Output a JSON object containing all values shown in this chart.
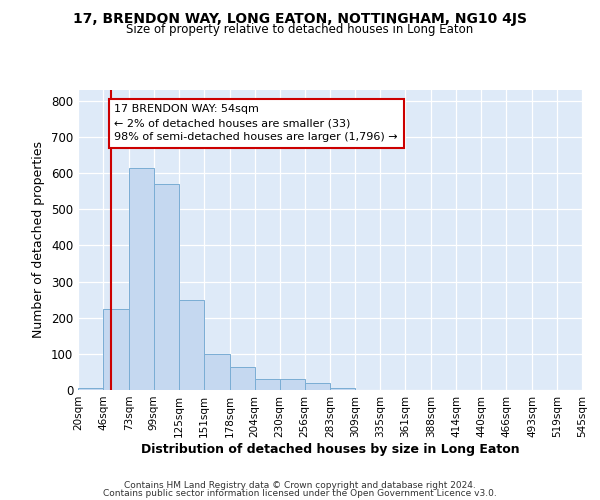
{
  "title": "17, BRENDON WAY, LONG EATON, NOTTINGHAM, NG10 4JS",
  "subtitle": "Size of property relative to detached houses in Long Eaton",
  "xlabel": "Distribution of detached houses by size in Long Eaton",
  "ylabel": "Number of detached properties",
  "bin_edges": [
    20,
    46,
    73,
    99,
    125,
    151,
    178,
    204,
    230,
    256,
    283,
    309,
    335,
    361,
    388,
    414,
    440,
    466,
    493,
    519,
    545
  ],
  "bar_heights": [
    5,
    225,
    615,
    570,
    250,
    100,
    65,
    30,
    30,
    18,
    5,
    0,
    0,
    0,
    0,
    0,
    0,
    0,
    0,
    0
  ],
  "bar_color": "#c5d8f0",
  "bar_edge_color": "#7aadd4",
  "background_color": "#deeaf8",
  "red_line_x": 54,
  "red_line_color": "#cc0000",
  "annotation_line1": "17 BRENDON WAY: 54sqm",
  "annotation_line2": "← 2% of detached houses are smaller (33)",
  "annotation_line3": "98% of semi-detached houses are larger (1,796) →",
  "annotation_box_facecolor": "#ffffff",
  "annotation_box_edgecolor": "#cc0000",
  "ylim": [
    0,
    830
  ],
  "yticks": [
    0,
    100,
    200,
    300,
    400,
    500,
    600,
    700,
    800
  ],
  "footer1": "Contains HM Land Registry data © Crown copyright and database right 2024.",
  "footer2": "Contains public sector information licensed under the Open Government Licence v3.0."
}
